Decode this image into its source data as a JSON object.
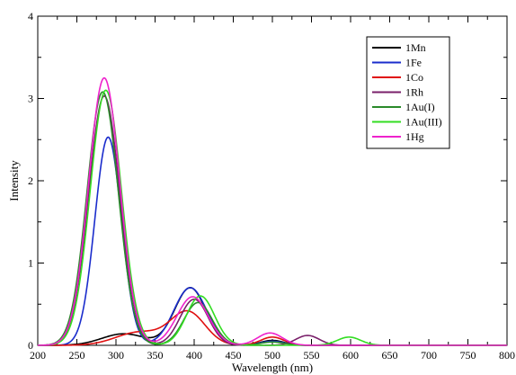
{
  "chart_data": {
    "type": "line",
    "xlabel": "Wavelength (nm)",
    "ylabel": "Intensity",
    "xlim": [
      200,
      800
    ],
    "ylim": [
      0,
      4
    ],
    "x_ticks": [
      "200",
      "250",
      "300",
      "350",
      "400",
      "450",
      "500",
      "550",
      "600",
      "650",
      "700",
      "750",
      "800"
    ],
    "y_ticks": [
      "0",
      "1",
      "2",
      "3",
      "4"
    ],
    "legend_position": "top-right",
    "series": [
      {
        "name": "1Mn",
        "color": "#000000",
        "peaks": [
          {
            "center": 310,
            "height": 0.14,
            "width": 28
          },
          {
            "center": 395,
            "height": 0.7,
            "width": 20
          },
          {
            "center": 500,
            "height": 0.06,
            "width": 15
          }
        ]
      },
      {
        "name": "1Fe",
        "color": "#1a2ccc",
        "peaks": [
          {
            "center": 290,
            "height": 2.53,
            "width": 17
          },
          {
            "center": 395,
            "height": 0.7,
            "width": 21
          },
          {
            "center": 500,
            "height": 0.05,
            "width": 15
          }
        ]
      },
      {
        "name": "1Co",
        "color": "#e01010",
        "peaks": [
          {
            "center": 330,
            "height": 0.16,
            "width": 30
          },
          {
            "center": 392,
            "height": 0.4,
            "width": 22
          },
          {
            "center": 500,
            "height": 0.1,
            "width": 15
          }
        ]
      },
      {
        "name": "1Rh",
        "color": "#7a1f6a",
        "peaks": [
          {
            "center": 285,
            "height": 3.03,
            "width": 20
          },
          {
            "center": 400,
            "height": 0.56,
            "width": 18
          },
          {
            "center": 545,
            "height": 0.12,
            "width": 15
          }
        ]
      },
      {
        "name": "1Au(I)",
        "color": "#2a8a2a",
        "peaks": [
          {
            "center": 283,
            "height": 3.08,
            "width": 20
          },
          {
            "center": 405,
            "height": 0.52,
            "width": 18
          },
          {
            "center": 500,
            "height": 0.04,
            "width": 15
          }
        ]
      },
      {
        "name": "1Au(III)",
        "color": "#33dd22",
        "peaks": [
          {
            "center": 287,
            "height": 3.1,
            "width": 20
          },
          {
            "center": 408,
            "height": 0.6,
            "width": 18
          },
          {
            "center": 598,
            "height": 0.1,
            "width": 15
          }
        ]
      },
      {
        "name": "1Hg",
        "color": "#ee22cc",
        "peaks": [
          {
            "center": 285,
            "height": 3.25,
            "width": 20
          },
          {
            "center": 398,
            "height": 0.59,
            "width": 20
          },
          {
            "center": 497,
            "height": 0.15,
            "width": 16
          }
        ]
      }
    ]
  }
}
